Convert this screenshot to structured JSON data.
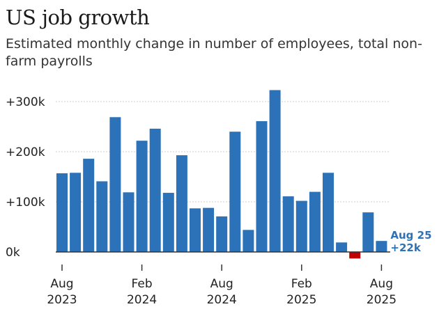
{
  "header": {
    "title": "US job growth",
    "subtitle": "Estimated monthly change in number of employees, total non-farm payrolls"
  },
  "colors": {
    "bar": "#2c72b8",
    "negative": "#c00000",
    "grid": "#cccccc",
    "label": "#2c72b8"
  },
  "chart_data": {
    "type": "bar",
    "title": "US job growth",
    "subtitle": "Estimated monthly change in number of employees, total non-farm payrolls",
    "ylabel": "",
    "xlabel": "",
    "ylim": [
      -15,
      300
    ],
    "yticks": [
      {
        "value": 0,
        "label": "0k"
      },
      {
        "value": 100,
        "label": "+100k"
      },
      {
        "value": 200,
        "label": "+200k"
      },
      {
        "value": 300,
        "label": "+300k"
      }
    ],
    "categories": [
      "Aug 2023",
      "Sep 2023",
      "Oct 2023",
      "Nov 2023",
      "Dec 2023",
      "Jan 2024",
      "Feb 2024",
      "Mar 2024",
      "Apr 2024",
      "May 2024",
      "Jun 2024",
      "Jul 2024",
      "Aug 2024",
      "Sep 2024",
      "Oct 2024",
      "Nov 2024",
      "Dec 2024",
      "Jan 2025",
      "Feb 2025",
      "Mar 2025",
      "Apr 2025",
      "May 2025",
      "Jun 2025",
      "Jul 2025",
      "Aug 2025"
    ],
    "values": [
      157,
      158,
      186,
      141,
      269,
      119,
      222,
      246,
      118,
      193,
      87,
      88,
      71,
      240,
      44,
      261,
      323,
      111,
      102,
      120,
      158,
      19,
      -13,
      79,
      22
    ],
    "xticks": [
      {
        "index": 0,
        "line1": "Aug",
        "line2": "2023"
      },
      {
        "index": 6,
        "line1": "Feb",
        "line2": "2024"
      },
      {
        "index": 12,
        "line1": "Aug",
        "line2": "2024"
      },
      {
        "index": 18,
        "line1": "Feb",
        "line2": "2025"
      },
      {
        "index": 24,
        "line1": "Aug",
        "line2": "2025"
      }
    ],
    "annotation": {
      "index": 24,
      "line1": "Aug 25",
      "line2": "+22k"
    }
  }
}
